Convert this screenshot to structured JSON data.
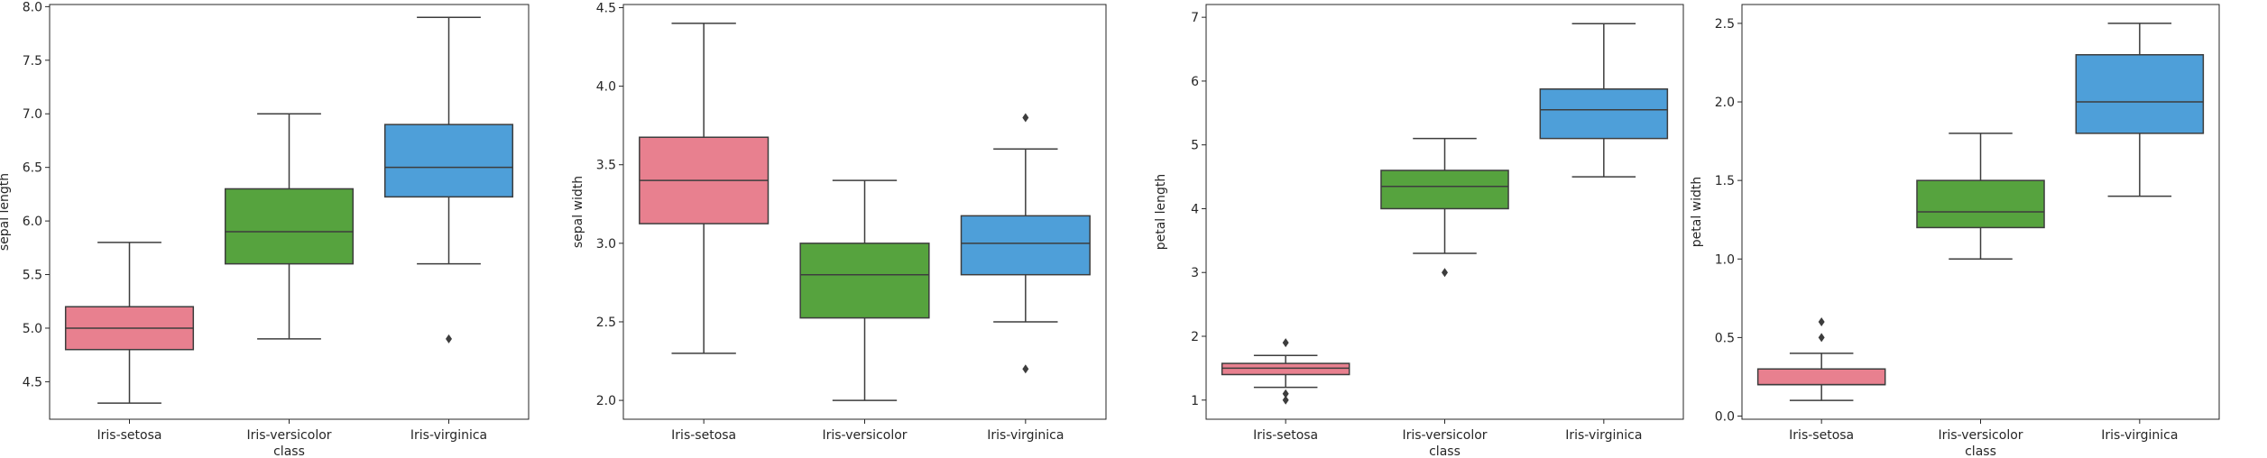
{
  "chart_data": [
    {
      "type": "box",
      "xlabel": "class",
      "ylabel": "sepal length",
      "categories": [
        "Iris-setosa",
        "Iris-versicolor",
        "Iris-virginica"
      ],
      "colors": [
        "#e8808f",
        "#56a33e",
        "#4e9fd9"
      ],
      "ylim": [
        4.15,
        8.02
      ],
      "yticks": [
        4.5,
        5.0,
        5.5,
        6.0,
        6.5,
        7.0,
        7.5,
        8.0
      ],
      "ytick_labels": [
        "4.5",
        "5.0",
        "5.5",
        "6.0",
        "6.5",
        "7.0",
        "7.5",
        "8.0"
      ],
      "boxes": [
        {
          "whislo": 4.3,
          "q1": 4.8,
          "med": 5.0,
          "q3": 5.2,
          "whishi": 5.8,
          "fliers": []
        },
        {
          "whislo": 4.9,
          "q1": 5.6,
          "med": 5.9,
          "q3": 6.3,
          "whishi": 7.0,
          "fliers": []
        },
        {
          "whislo": 5.6,
          "q1": 6.225,
          "med": 6.5,
          "q3": 6.9,
          "whishi": 7.9,
          "fliers": [
            4.9
          ]
        }
      ]
    },
    {
      "type": "box",
      "xlabel": "",
      "ylabel": "sepal width",
      "categories": [
        "Iris-setosa",
        "Iris-versicolor",
        "Iris-virginica"
      ],
      "colors": [
        "#e8808f",
        "#56a33e",
        "#4e9fd9"
      ],
      "ylim": [
        1.88,
        4.52
      ],
      "yticks": [
        2.0,
        2.5,
        3.0,
        3.5,
        4.0,
        4.5
      ],
      "ytick_labels": [
        "2.0",
        "2.5",
        "3.0",
        "3.5",
        "4.0",
        "4.5"
      ],
      "boxes": [
        {
          "whislo": 2.3,
          "q1": 3.125,
          "med": 3.4,
          "q3": 3.675,
          "whishi": 4.4,
          "fliers": []
        },
        {
          "whislo": 2.0,
          "q1": 2.525,
          "med": 2.8,
          "q3": 3.0,
          "whishi": 3.4,
          "fliers": []
        },
        {
          "whislo": 2.5,
          "q1": 2.8,
          "med": 3.0,
          "q3": 3.175,
          "whishi": 3.6,
          "fliers": [
            3.8,
            2.2
          ]
        }
      ]
    },
    {
      "type": "box",
      "xlabel": "class",
      "ylabel": "petal length",
      "categories": [
        "Iris-setosa",
        "Iris-versicolor",
        "Iris-virginica"
      ],
      "colors": [
        "#e8808f",
        "#56a33e",
        "#4e9fd9"
      ],
      "ylim": [
        0.7,
        7.2
      ],
      "yticks": [
        1,
        2,
        3,
        4,
        5,
        6,
        7
      ],
      "ytick_labels": [
        "1",
        "2",
        "3",
        "4",
        "5",
        "6",
        "7"
      ],
      "boxes": [
        {
          "whislo": 1.2,
          "q1": 1.4,
          "med": 1.5,
          "q3": 1.575,
          "whishi": 1.7,
          "fliers": [
            1.9,
            1.1,
            1.0
          ]
        },
        {
          "whislo": 3.3,
          "q1": 4.0,
          "med": 4.35,
          "q3": 4.6,
          "whishi": 5.1,
          "fliers": [
            3.0
          ]
        },
        {
          "whislo": 4.5,
          "q1": 5.1,
          "med": 5.55,
          "q3": 5.875,
          "whishi": 6.9,
          "fliers": []
        }
      ]
    },
    {
      "type": "box",
      "xlabel": "class",
      "ylabel": "petal width",
      "categories": [
        "Iris-setosa",
        "Iris-versicolor",
        "Iris-virginica"
      ],
      "colors": [
        "#e8808f",
        "#56a33e",
        "#4e9fd9"
      ],
      "ylim": [
        -0.02,
        2.62
      ],
      "yticks": [
        0.0,
        0.5,
        1.0,
        1.5,
        2.0,
        2.5
      ],
      "ytick_labels": [
        "0.0",
        "0.5",
        "1.0",
        "1.5",
        "2.0",
        "2.5"
      ],
      "boxes": [
        {
          "whislo": 0.1,
          "q1": 0.2,
          "med": 0.2,
          "q3": 0.3,
          "whishi": 0.4,
          "fliers": [
            0.6,
            0.5
          ]
        },
        {
          "whislo": 1.0,
          "q1": 1.2,
          "med": 1.3,
          "q3": 1.5,
          "whishi": 1.8,
          "fliers": []
        },
        {
          "whislo": 1.4,
          "q1": 1.8,
          "med": 2.0,
          "q3": 2.3,
          "whishi": 2.5,
          "fliers": []
        }
      ]
    }
  ]
}
